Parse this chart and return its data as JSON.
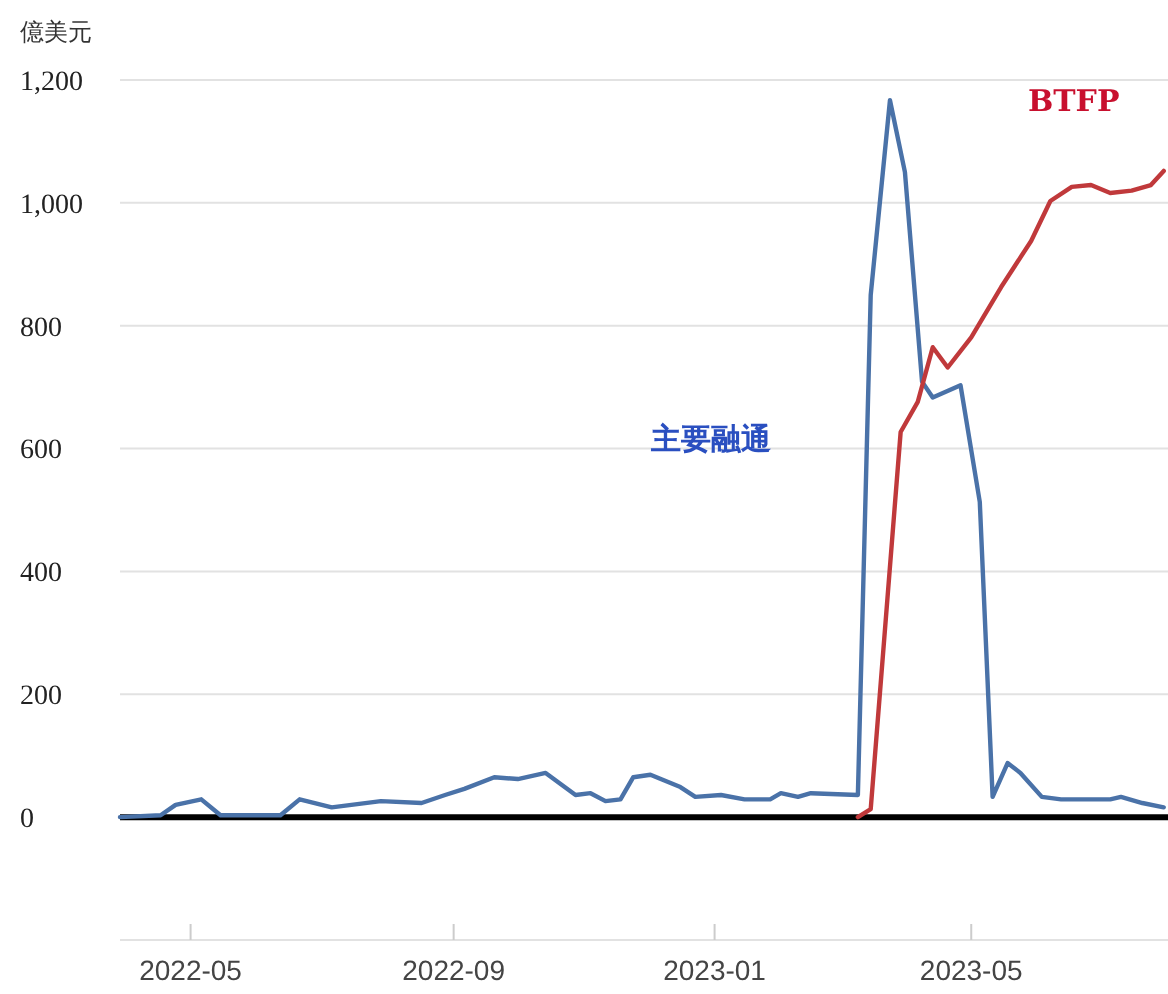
{
  "chart_data": {
    "type": "line",
    "ylabel": "億美元",
    "xlim": [
      "2022-03-29",
      "2023-08-01"
    ],
    "xticks": [
      {
        "value": "2022-05-01",
        "label": "2022-05"
      },
      {
        "value": "2022-09-01",
        "label": "2022-09"
      },
      {
        "value": "2023-01-01",
        "label": "2023-01"
      },
      {
        "value": "2023-05-01",
        "label": "2023-05"
      }
    ],
    "ylim": [
      -200,
      1200
    ],
    "yticks": [
      {
        "value": -200,
        "label": null
      },
      0,
      200,
      400,
      600,
      800,
      {
        "value": 1000,
        "label": "1,000"
      },
      {
        "value": 1200,
        "label": "1,200"
      }
    ],
    "grid": "y",
    "marker": "none",
    "line_style": "solid",
    "ref_lines": [
      {
        "axis": "y",
        "value": 0,
        "color": "#000000"
      }
    ],
    "series": [
      {
        "name": "主要融通",
        "color": "#4a72a8",
        "x": [
          "2022-03-29",
          "2022-04-17",
          "2022-04-24",
          "2022-05-06",
          "2022-05-15",
          "2022-06-12",
          "2022-06-21",
          "2022-07-06",
          "2022-07-29",
          "2022-08-17",
          "2022-08-28",
          "2022-09-06",
          "2022-09-20",
          "2022-10-01",
          "2022-10-14",
          "2022-10-28",
          "2022-11-04",
          "2022-11-11",
          "2022-11-18",
          "2022-11-24",
          "2022-12-02",
          "2022-12-16",
          "2022-12-23",
          "2023-01-04",
          "2023-01-15",
          "2023-01-27",
          "2023-02-01",
          "2023-02-09",
          "2023-02-15",
          "2023-03-09",
          "2023-03-15",
          "2023-03-24",
          "2023-03-31",
          "2023-04-08",
          "2023-04-13",
          "2023-04-26",
          "2023-05-05",
          "2023-05-11",
          "2023-05-18",
          "2023-05-24",
          "2023-06-03",
          "2023-06-12",
          "2023-07-05",
          "2023-07-10",
          "2023-07-20",
          "2023-07-30"
        ],
        "values": [
          0,
          3,
          20,
          29,
          3,
          3,
          29,
          16,
          26,
          23,
          36,
          46,
          65,
          62,
          72,
          36,
          39,
          26,
          29,
          65,
          69,
          49,
          33,
          36,
          29,
          29,
          39,
          33,
          39,
          36,
          850,
          1167,
          1050,
          709,
          683,
          703,
          513,
          33,
          88,
          72,
          33,
          29,
          29,
          33,
          23,
          16
        ]
      },
      {
        "name": "BTFP",
        "color": "#c0393b",
        "x": [
          "2023-03-09",
          "2023-03-15",
          "2023-03-29",
          "2023-04-06",
          "2023-04-13",
          "2023-04-20",
          "2023-05-01",
          "2023-05-15",
          "2023-05-29",
          "2023-06-07",
          "2023-06-17",
          "2023-06-26",
          "2023-07-05",
          "2023-07-15",
          "2023-07-24",
          "2023-07-30"
        ],
        "values": [
          0,
          13,
          627,
          676,
          765,
          732,
          781,
          863,
          938,
          1003,
          1026,
          1029,
          1016,
          1020,
          1029,
          1052
        ]
      }
    ]
  }
}
